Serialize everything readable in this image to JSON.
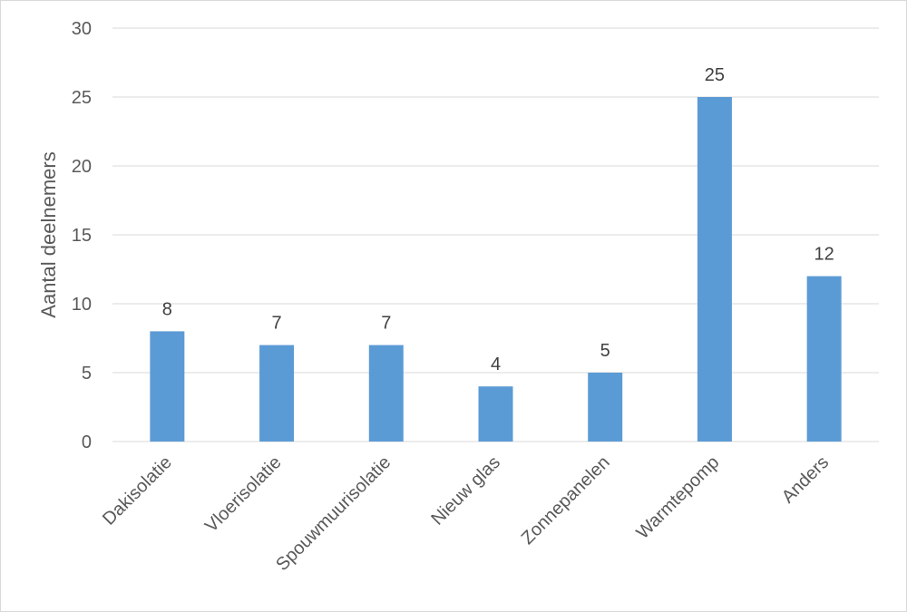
{
  "chart_data": {
    "type": "bar",
    "categories": [
      "Dakisolatie",
      "Vloerisolatie",
      "Spouwmuurisolatie",
      "Nieuw glas",
      "Zonnepanelen",
      "Warmtepomp",
      "Anders"
    ],
    "values": [
      8,
      7,
      7,
      4,
      5,
      25,
      12
    ],
    "data_labels": [
      "8",
      "7",
      "7",
      "4",
      "5",
      "25",
      "12"
    ],
    "title": "",
    "xlabel": "",
    "ylabel": "Aantal deelnemers",
    "ylim": [
      0,
      30
    ],
    "yticks": [
      0,
      5,
      10,
      15,
      20,
      25,
      30
    ],
    "ytick_labels": [
      "0",
      "5",
      "10",
      "15",
      "20",
      "25",
      "30"
    ],
    "grid": true,
    "legend": "none",
    "bar_color": "#5b9bd5",
    "grid_color": "#d9d9d9",
    "text_color": "#595959"
  }
}
